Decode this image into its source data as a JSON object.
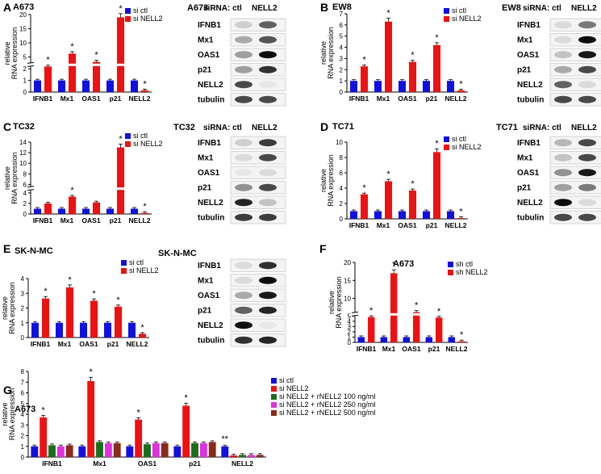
{
  "figure": {
    "panels": [
      {
        "letter": "A",
        "cell_line": "A673",
        "blot_title": "A673",
        "siRNA_label": "siRNA:",
        "ctl_label": "ctl",
        "treat_label": "NELL2",
        "blot_rows": [
          "IFNB1",
          "Mx1",
          "OAS1",
          "p21",
          "NELL2",
          "tubulin"
        ]
      },
      {
        "letter": "B",
        "cell_line": "EW8",
        "blot_title": "EW8",
        "siRNA_label": "siRNA:",
        "ctl_label": "ctl",
        "treat_label": "NELL2",
        "blot_rows": [
          "IFNB1",
          "Mx1",
          "OAS1",
          "p21",
          "NELL2",
          "tubulin"
        ]
      },
      {
        "letter": "C",
        "cell_line": "TC32",
        "blot_title": "TC32",
        "siRNA_label": "siRNA:",
        "ctl_label": "ctl",
        "treat_label": "NELL2",
        "blot_rows": [
          "IFNB1",
          "Mx1",
          "OAS1",
          "p21",
          "NELL2",
          "tubulin"
        ]
      },
      {
        "letter": "D",
        "cell_line": "TC71",
        "blot_title": "TC71",
        "siRNA_label": "siRNA:",
        "ctl_label": "ctl",
        "treat_label": "NELL2",
        "blot_rows": [
          "IFNB1",
          "Mx1",
          "OAS1",
          "p21",
          "NELL2",
          "tubulin"
        ]
      },
      {
        "letter": "E",
        "cell_line": "SK-N-MC",
        "blot_title": "SK-N-MC",
        "blot_rows": [
          "IFNB1",
          "Mx1",
          "OAS1",
          "p21",
          "NELL2",
          "tubulin"
        ]
      },
      {
        "letter": "F",
        "cell_line": "A673"
      },
      {
        "letter": "G",
        "cell_line": "A673"
      }
    ],
    "wb_band_intensity": {
      "A": [
        [
          0.15,
          0.6
        ],
        [
          0.3,
          0.65
        ],
        [
          0.35,
          0.95
        ],
        [
          0.35,
          0.8
        ],
        [
          0.7,
          0.05
        ],
        [
          0.7,
          0.7
        ]
      ],
      "B": [
        [
          0.1,
          0.5
        ],
        [
          0.1,
          0.95
        ],
        [
          0.2,
          0.9
        ],
        [
          0.3,
          0.7
        ],
        [
          0.6,
          0.1
        ],
        [
          0.7,
          0.7
        ]
      ],
      "C": [
        [
          0.15,
          0.75
        ],
        [
          0.1,
          0.7
        ],
        [
          0.05,
          0.1
        ],
        [
          0.4,
          0.7
        ],
        [
          0.85,
          0.2
        ],
        [
          0.75,
          0.75
        ]
      ],
      "D": [
        [
          0.25,
          0.7
        ],
        [
          0.2,
          0.7
        ],
        [
          0.4,
          0.9
        ],
        [
          0.35,
          0.5
        ],
        [
          0.95,
          0.1
        ],
        [
          0.7,
          0.7
        ]
      ],
      "E": [
        [
          0.1,
          0.8
        ],
        [
          0.1,
          0.95
        ],
        [
          0.3,
          0.9
        ],
        [
          0.6,
          0.85
        ],
        [
          0.95,
          0.05
        ],
        [
          0.8,
          0.85
        ]
      ]
    }
  },
  "chart_data": [
    {
      "id": "A",
      "type": "bar",
      "ylabel": "relative RNA expression",
      "ylim": [
        0,
        20
      ],
      "axis_break": {
        "from": 2.2,
        "to": 2.8
      },
      "yticks": [
        "0",
        "1",
        "2",
        "5",
        "10",
        "15",
        "20"
      ],
      "categories": [
        "IFNB1",
        "Mx1",
        "OAS1",
        "p21",
        "NELL2"
      ],
      "series": [
        {
          "name": "si ctl",
          "color": "#1010e0",
          "values": [
            1,
            1,
            1,
            1,
            1
          ]
        },
        {
          "name": "si NELL2",
          "color": "#ee1111",
          "values": [
            2.2,
            6.2,
            3.3,
            19,
            0.15
          ]
        }
      ],
      "significance": [
        "*",
        "*",
        "*",
        "*",
        "*"
      ]
    },
    {
      "id": "B",
      "type": "bar",
      "ylabel": "relative RNA expression",
      "ylim": [
        0,
        7
      ],
      "yticks": [
        "0",
        "1",
        "2",
        "3",
        "4",
        "5",
        "6",
        "7"
      ],
      "categories": [
        "IFNB1",
        "Mx1",
        "OAS1",
        "p21",
        "NELL2"
      ],
      "series": [
        {
          "name": "si ctl",
          "color": "#1010e0",
          "values": [
            1,
            1,
            1,
            1,
            1
          ]
        },
        {
          "name": "si NELL2",
          "color": "#ee1111",
          "values": [
            2.3,
            6.3,
            2.7,
            4.2,
            0.15
          ]
        }
      ],
      "significance": [
        "*",
        "*",
        "*",
        "*",
        "*"
      ]
    },
    {
      "id": "C",
      "type": "bar",
      "ylabel": "relative RNA expression",
      "ylim": [
        0,
        14
      ],
      "axis_break": {
        "from": 4.5,
        "to": 5.5
      },
      "yticks": [
        "0",
        "2",
        "4",
        "6",
        "8",
        "10",
        "12",
        "14"
      ],
      "categories": [
        "IFNB1",
        "Mx1",
        "OAS1",
        "p21",
        "NELL2"
      ],
      "series": [
        {
          "name": "si ctl",
          "color": "#1010e0",
          "values": [
            1,
            1,
            1,
            1,
            1
          ]
        },
        {
          "name": "si NELL2",
          "color": "#ee1111",
          "values": [
            2.0,
            3.3,
            2.2,
            13,
            0.2
          ]
        }
      ],
      "significance": [
        "",
        "*",
        "",
        "*",
        "*"
      ]
    },
    {
      "id": "D",
      "type": "bar",
      "ylabel": "relative RNA expression",
      "ylim": [
        0,
        10
      ],
      "yticks": [
        "0",
        "2",
        "4",
        "6",
        "8",
        "10"
      ],
      "categories": [
        "IFNB1",
        "Mx1",
        "OAS1",
        "p21",
        "NELL2"
      ],
      "series": [
        {
          "name": "si ctl",
          "color": "#1010e0",
          "values": [
            1,
            1,
            1,
            1,
            1
          ]
        },
        {
          "name": "si NELL2",
          "color": "#ee1111",
          "values": [
            3.2,
            4.9,
            3.7,
            8.7,
            0.1
          ]
        }
      ],
      "significance": [
        "*",
        "*",
        "*",
        "*",
        "*"
      ]
    },
    {
      "id": "E",
      "type": "bar",
      "ylabel": "relative RNA expression",
      "ylim": [
        0,
        4
      ],
      "yticks": [
        "0",
        "1",
        "2",
        "3",
        "4"
      ],
      "categories": [
        "IFNB1",
        "Mx1",
        "OAS1",
        "p21",
        "NELL2"
      ],
      "series": [
        {
          "name": "si ctl",
          "color": "#1010e0",
          "values": [
            1,
            1,
            1,
            1,
            1
          ]
        },
        {
          "name": "si NELL2",
          "color": "#ee1111",
          "values": [
            2.65,
            3.4,
            2.5,
            2.1,
            0.25
          ]
        }
      ],
      "significance": [
        "*",
        "*",
        "*",
        "*",
        "*"
      ]
    },
    {
      "id": "F",
      "type": "bar",
      "ylabel": "relative RNA expression",
      "ylim": [
        0,
        20
      ],
      "axis_break": {
        "from": 5,
        "to": 6
      },
      "yticks": [
        "0",
        "1",
        "2",
        "3",
        "4",
        "5",
        "10",
        "15",
        "20"
      ],
      "categories": [
        "IFNB1",
        "Mx1",
        "OAS1",
        "p21",
        "NELL2"
      ],
      "series": [
        {
          "name": "sh ctl",
          "color": "#1010e0",
          "values": [
            1,
            1,
            1,
            1,
            1
          ]
        },
        {
          "name": "sh NELL2",
          "color": "#ee1111",
          "values": [
            4.8,
            17,
            6.2,
            4.7,
            0.2
          ]
        }
      ],
      "significance": [
        "*",
        "*",
        "*",
        "*",
        "*"
      ]
    },
    {
      "id": "G",
      "type": "bar",
      "ylabel": "relative RNA expression",
      "ylim": [
        0,
        8
      ],
      "yticks": [
        "0",
        "1",
        "2",
        "3",
        "4",
        "5",
        "6",
        "7",
        "8"
      ],
      "categories": [
        "IFNB1",
        "Mx1",
        "OAS1",
        "p21",
        "NELL2"
      ],
      "series": [
        {
          "name": "si ctl",
          "color": "#1010e0",
          "values": [
            1,
            1,
            1,
            1,
            1
          ]
        },
        {
          "name": "si NELL2",
          "color": "#ee1111",
          "values": [
            3.7,
            7.1,
            3.5,
            4.8,
            0.15
          ]
        },
        {
          "name": "si NELL2 + rNELL2 100 ng/ml",
          "color": "#1a6e1a",
          "values": [
            1.1,
            1.4,
            1.2,
            1.3,
            0.2
          ]
        },
        {
          "name": "si NELL2 + rNELL2 250 ng/ml",
          "color": "#e030e0",
          "values": [
            1.0,
            1.3,
            1.3,
            1.3,
            0.2
          ]
        },
        {
          "name": "si NELL2 + rNELL2 500 ng/ml",
          "color": "#8a2a1a",
          "values": [
            1.1,
            1.3,
            1.3,
            1.4,
            0.2
          ]
        }
      ],
      "significance": [
        "*",
        "*",
        "*",
        "*",
        "**"
      ]
    }
  ]
}
